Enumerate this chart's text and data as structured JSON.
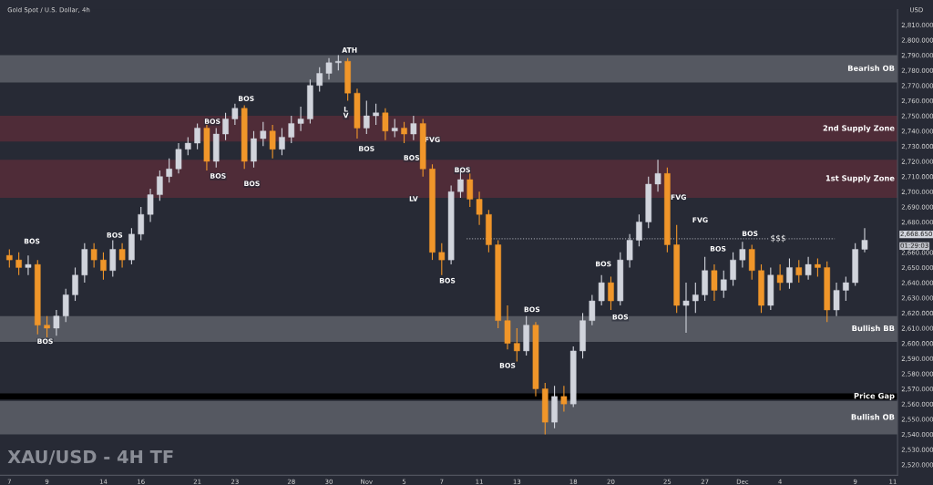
{
  "chart_data": {
    "type": "candlestick",
    "title": "Gold Spot / U.S. Dollar, 4h",
    "ylabel": "USD",
    "categories": [
      "7",
      null,
      null,
      null,
      "9",
      null,
      null,
      null,
      null,
      null,
      "14",
      null,
      null,
      null,
      "16",
      null,
      null,
      null,
      null,
      null,
      "21",
      null,
      null,
      null,
      "23",
      null,
      null,
      null,
      null,
      null,
      "28",
      null,
      null,
      null,
      "30",
      null,
      null,
      null,
      "Nov",
      null,
      null,
      null,
      "5",
      null,
      null,
      null,
      "7",
      null,
      null,
      null,
      "11",
      null,
      null,
      null,
      "13",
      null,
      null,
      null,
      null,
      null,
      "18",
      null,
      null,
      null,
      "20",
      null,
      null,
      null,
      null,
      null,
      "25",
      null,
      null,
      null,
      "27",
      null,
      null,
      null,
      "Dec",
      null,
      null,
      null,
      "4",
      null,
      null,
      null,
      null,
      null,
      null,
      null,
      "9",
      null,
      null,
      null,
      "11"
    ],
    "ohlc": [
      [
        2658,
        2662,
        2650,
        2655
      ],
      [
        2655,
        2660,
        2645,
        2650
      ],
      [
        2650,
        2658,
        2645,
        2652
      ],
      [
        2652,
        2655,
        2606,
        2612
      ],
      [
        2612,
        2618,
        2604,
        2610
      ],
      [
        2610,
        2622,
        2605,
        2618
      ],
      [
        2618,
        2636,
        2614,
        2632
      ],
      [
        2632,
        2650,
        2628,
        2645
      ],
      [
        2645,
        2666,
        2640,
        2662
      ],
      [
        2662,
        2666,
        2650,
        2655
      ],
      [
        2655,
        2660,
        2642,
        2648
      ],
      [
        2648,
        2668,
        2644,
        2662
      ],
      [
        2662,
        2666,
        2650,
        2655
      ],
      [
        2655,
        2676,
        2652,
        2672
      ],
      [
        2672,
        2690,
        2668,
        2685
      ],
      [
        2685,
        2702,
        2680,
        2698
      ],
      [
        2698,
        2714,
        2694,
        2710
      ],
      [
        2710,
        2722,
        2706,
        2715
      ],
      [
        2715,
        2732,
        2712,
        2728
      ],
      [
        2728,
        2736,
        2724,
        2732
      ],
      [
        2732,
        2745,
        2728,
        2742
      ],
      [
        2742,
        2744,
        2714,
        2720
      ],
      [
        2720,
        2742,
        2716,
        2738
      ],
      [
        2738,
        2752,
        2734,
        2748
      ],
      [
        2748,
        2758,
        2744,
        2755
      ],
      [
        2755,
        2757,
        2715,
        2720
      ],
      [
        2720,
        2740,
        2716,
        2735
      ],
      [
        2735,
        2746,
        2730,
        2740
      ],
      [
        2740,
        2744,
        2722,
        2728
      ],
      [
        2728,
        2742,
        2724,
        2736
      ],
      [
        2736,
        2750,
        2732,
        2745
      ],
      [
        2745,
        2756,
        2740,
        2748
      ],
      [
        2748,
        2774,
        2745,
        2770
      ],
      [
        2770,
        2782,
        2766,
        2778
      ],
      [
        2778,
        2788,
        2774,
        2785
      ],
      [
        2785,
        2790,
        2780,
        2786
      ],
      [
        2786,
        2788,
        2760,
        2765
      ],
      [
        2765,
        2768,
        2735,
        2742
      ],
      [
        2742,
        2760,
        2738,
        2750
      ],
      [
        2750,
        2758,
        2744,
        2752
      ],
      [
        2752,
        2755,
        2734,
        2740
      ],
      [
        2740,
        2748,
        2736,
        2742
      ],
      [
        2742,
        2746,
        2732,
        2738
      ],
      [
        2738,
        2750,
        2734,
        2745
      ],
      [
        2745,
        2748,
        2710,
        2715
      ],
      [
        2715,
        2718,
        2655,
        2660
      ],
      [
        2660,
        2666,
        2645,
        2655
      ],
      [
        2655,
        2704,
        2652,
        2700
      ],
      [
        2700,
        2714,
        2696,
        2708
      ],
      [
        2708,
        2712,
        2690,
        2695
      ],
      [
        2695,
        2700,
        2678,
        2685
      ],
      [
        2685,
        2688,
        2660,
        2665
      ],
      [
        2665,
        2668,
        2610,
        2615
      ],
      [
        2615,
        2625,
        2596,
        2600
      ],
      [
        2600,
        2610,
        2588,
        2595
      ],
      [
        2595,
        2618,
        2592,
        2612
      ],
      [
        2612,
        2614,
        2565,
        2570
      ],
      [
        2570,
        2574,
        2540,
        2548
      ],
      [
        2548,
        2572,
        2544,
        2565
      ],
      [
        2565,
        2572,
        2555,
        2560
      ],
      [
        2560,
        2598,
        2558,
        2595
      ],
      [
        2595,
        2620,
        2590,
        2615
      ],
      [
        2615,
        2632,
        2612,
        2628
      ],
      [
        2628,
        2645,
        2625,
        2640
      ],
      [
        2640,
        2644,
        2622,
        2628
      ],
      [
        2628,
        2660,
        2625,
        2655
      ],
      [
        2655,
        2672,
        2650,
        2668
      ],
      [
        2668,
        2685,
        2664,
        2680
      ],
      [
        2680,
        2710,
        2676,
        2705
      ],
      [
        2705,
        2721,
        2700,
        2712
      ],
      [
        2712,
        2716,
        2660,
        2665
      ],
      [
        2665,
        2678,
        2620,
        2625
      ],
      [
        2625,
        2640,
        2607,
        2628
      ],
      [
        2628,
        2640,
        2620,
        2632
      ],
      [
        2632,
        2657,
        2628,
        2648
      ],
      [
        2648,
        2652,
        2628,
        2635
      ],
      [
        2635,
        2648,
        2630,
        2642
      ],
      [
        2642,
        2660,
        2638,
        2655
      ],
      [
        2655,
        2667,
        2650,
        2662
      ],
      [
        2662,
        2665,
        2642,
        2648
      ],
      [
        2648,
        2652,
        2620,
        2625
      ],
      [
        2625,
        2650,
        2622,
        2645
      ],
      [
        2645,
        2652,
        2635,
        2640
      ],
      [
        2640,
        2656,
        2636,
        2650
      ],
      [
        2650,
        2655,
        2640,
        2645
      ],
      [
        2645,
        2657,
        2642,
        2652
      ],
      [
        2652,
        2656,
        2644,
        2650
      ],
      [
        2650,
        2654,
        2614,
        2622
      ],
      [
        2622,
        2640,
        2618,
        2635
      ],
      [
        2635,
        2644,
        2628,
        2640
      ],
      [
        2640,
        2666,
        2638,
        2662
      ],
      [
        2662,
        2676,
        2660,
        2668
      ],
      null,
      null,
      null
    ],
    "colors": [
      "#f0962a",
      "#f0962a",
      "#d1d4dc",
      "#f0962a",
      "#f0962a",
      "#d1d4dc",
      "#d1d4dc",
      "#d1d4dc",
      "#d1d4dc",
      "#f0962a",
      "#f0962a",
      "#d1d4dc",
      "#f0962a",
      "#d1d4dc",
      "#d1d4dc",
      "#d1d4dc",
      "#d1d4dc",
      "#d1d4dc",
      "#d1d4dc",
      "#d1d4dc",
      "#d1d4dc",
      "#f0962a",
      "#d1d4dc",
      "#d1d4dc",
      "#d1d4dc",
      "#f0962a",
      "#d1d4dc",
      "#d1d4dc",
      "#f0962a",
      "#d1d4dc",
      "#d1d4dc",
      "#d1d4dc",
      "#d1d4dc",
      "#d1d4dc",
      "#d1d4dc",
      "#d1d4dc",
      "#f0962a",
      "#f0962a",
      "#d1d4dc",
      "#d1d4dc",
      "#f0962a",
      "#d1d4dc",
      "#f0962a",
      "#d1d4dc",
      "#f0962a",
      "#f0962a",
      "#f0962a",
      "#d1d4dc",
      "#d1d4dc",
      "#f0962a",
      "#f0962a",
      "#f0962a",
      "#f0962a",
      "#f0962a",
      "#f0962a",
      "#d1d4dc",
      "#f0962a",
      "#f0962a",
      "#d1d4dc",
      "#f0962a",
      "#d1d4dc",
      "#d1d4dc",
      "#d1d4dc",
      "#d1d4dc",
      "#f0962a",
      "#d1d4dc",
      "#d1d4dc",
      "#d1d4dc",
      "#d1d4dc",
      "#d1d4dc",
      "#f0962a",
      "#f0962a",
      "#d1d4dc",
      "#d1d4dc",
      "#d1d4dc",
      "#f0962a",
      "#d1d4dc",
      "#d1d4dc",
      "#d1d4dc",
      "#f0962a",
      "#f0962a",
      "#d1d4dc",
      "#f0962a",
      "#d1d4dc",
      "#f0962a",
      "#d1d4dc",
      "#f0962a",
      "#f0962a",
      "#d1d4dc",
      "#d1d4dc",
      "#d1d4dc",
      "#d1d4dc",
      null,
      null,
      null
    ],
    "ylim": [
      2513,
      2820
    ],
    "yticks": [
      {
        "value": 2520,
        "label": "2,520.000"
      },
      {
        "value": 2530,
        "label": "2,530.000"
      },
      {
        "value": 2540,
        "label": "2,540.000"
      },
      {
        "value": 2550,
        "label": "2,550.000"
      },
      {
        "value": 2560,
        "label": "2,560.000"
      },
      {
        "value": 2570,
        "label": "2,570.000"
      },
      {
        "value": 2580,
        "label": "2,580.000"
      },
      {
        "value": 2590,
        "label": "2,590.000"
      },
      {
        "value": 2600,
        "label": "2,600.000"
      },
      {
        "value": 2610,
        "label": "2,610.000"
      },
      {
        "value": 2620,
        "label": "2,620.000"
      },
      {
        "value": 2630,
        "label": "2,630.000"
      },
      {
        "value": 2640,
        "label": "2,640.000"
      },
      {
        "value": 2650,
        "label": "2,650.000"
      },
      {
        "value": 2660,
        "label": "2,660.000"
      },
      {
        "value": 2680,
        "label": "2,680.000"
      },
      {
        "value": 2690,
        "label": "2,690.000"
      },
      {
        "value": 2700,
        "label": "2,700.000"
      },
      {
        "value": 2710,
        "label": "2,710.000"
      },
      {
        "value": 2720,
        "label": "2,720.000"
      },
      {
        "value": 2730,
        "label": "2,730.000"
      },
      {
        "value": 2740,
        "label": "2,740.000"
      },
      {
        "value": 2750,
        "label": "2,750.000"
      },
      {
        "value": 2760,
        "label": "2,760.000"
      },
      {
        "value": 2770,
        "label": "2,770.000"
      },
      {
        "value": 2780,
        "label": "2,780.000"
      },
      {
        "value": 2790,
        "label": "2,790.000"
      },
      {
        "value": 2800,
        "label": "2,800.000"
      },
      {
        "value": 2810,
        "label": "2,810.000"
      }
    ],
    "bands": [
      {
        "axis": "y",
        "from": 2772,
        "to": 2790,
        "label": "Bearish OB",
        "color": "#555861"
      },
      {
        "axis": "y",
        "from": 2733,
        "to": 2750,
        "label": "2nd Supply Zone",
        "color": "#4f2c38"
      },
      {
        "axis": "y",
        "from": 2696,
        "to": 2721,
        "label": "1st Supply Zone",
        "color": "#4f2c38"
      },
      {
        "axis": "y",
        "from": 2601,
        "to": 2618,
        "label": "Bullish BB",
        "color": "#555861"
      },
      {
        "axis": "y",
        "from": 2563,
        "to": 2567,
        "label": "Price Gap",
        "color": "#000000"
      },
      {
        "axis": "y",
        "from": 2540,
        "to": 2562,
        "label": "Bullish OB",
        "color": "#555861"
      }
    ],
    "ref_lines": [
      {
        "axis": "y",
        "value": 2669,
        "label": "$$$",
        "line_style": "dotted",
        "color": "#9598a1"
      }
    ],
    "annotations": [
      "XAU/USD - 4H TF",
      "2,668.650",
      "01:29:03",
      "BOS",
      "BOS",
      "BOS",
      "BOS",
      "BOS",
      "BOS",
      "BOS",
      "ATH",
      "BOS",
      "BOS",
      "FVG",
      "BOS",
      "BOS",
      "BOS",
      "BOS",
      "BOS",
      "BOS",
      "FVG",
      "FVG",
      "BOS",
      "BOS",
      "L\nV",
      "LV"
    ]
  }
}
